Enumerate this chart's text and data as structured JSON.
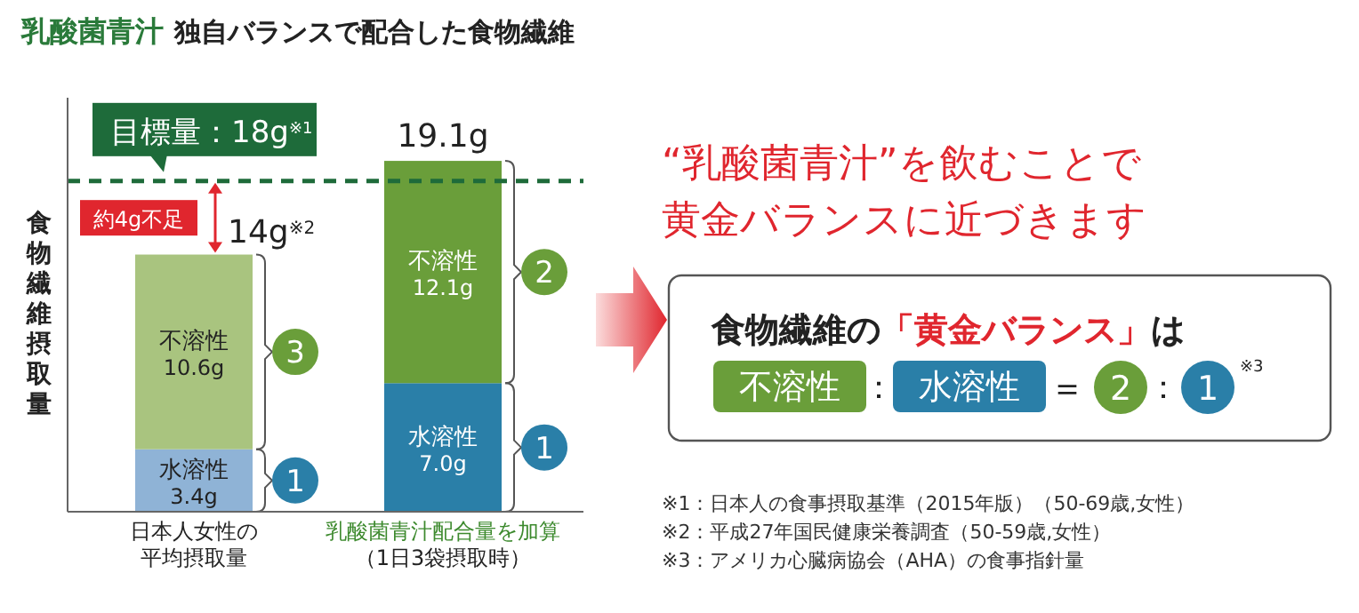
{
  "chart_data": {
    "type": "bar",
    "stacked": true,
    "title": "乳酸菌青汁",
    "subtitle": "独自バランスで配合した食物繊維",
    "ylabel": "食物繊維摂取量",
    "categories": [
      "日本人女性の平均摂取量",
      "乳酸菌青汁配合量を加算（1日3袋摂取時）"
    ],
    "series": [
      {
        "colors": [
          "#8fb3d6",
          "#2a7fa8"
        ],
        "values": [
          3.4,
          7.0
        ],
        "value_labels": [
          "水溶性3.4g",
          "水溶性7.0g"
        ]
      },
      {
        "colors": [
          "#a9c47f",
          "#6a9e3a"
        ],
        "values": [
          10.6,
          12.1
        ],
        "value_labels": [
          "不溶性10.6g",
          "不溶性12.1g"
        ]
      }
    ],
    "totals": [
      "14g$^{※2}$",
      "19.1g"
    ],
    "ref_lines": [
      {
        "axis": "y",
        "value": 18,
        "label": "目標量：18g$^{※1}$",
        "color": "#1e6b3a",
        "line_style": "dashed"
      }
    ],
    "annotations": [
      "約4g不足",
      "3",
      "1",
      "2",
      "1",
      "“乳酸菌青汁”を飲むことで",
      "黄金バランスに近づきます",
      "食物繊維の",
      "「黄金バランス」",
      "は",
      "不溶性",
      "：",
      "水溶性",
      "＝",
      "2",
      "：",
      "1",
      "※3",
      "※1：日本人の食事摂取基準（2015年版）（50-69歳,女性）",
      "※2：平成27年国民健康栄養調査（50-59歳,女性）",
      "※3：アメリカ心臓病協会（AHA）の食事指針量"
    ]
  }
}
